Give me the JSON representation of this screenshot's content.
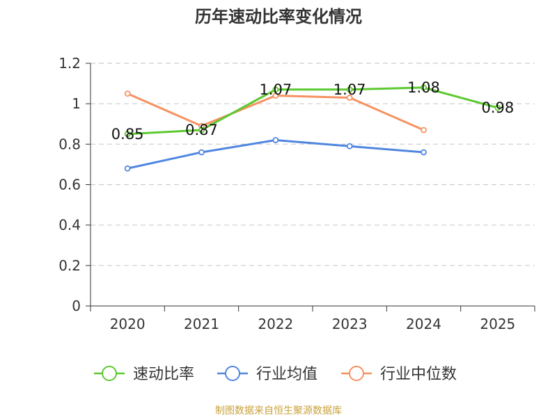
{
  "chart_data": {
    "type": "line",
    "title": "历年速动比率变化情况",
    "categories": [
      "2020",
      "2021",
      "2022",
      "2023",
      "2024",
      "2025"
    ],
    "ylim": [
      0,
      1.2
    ],
    "yticks": [
      "0",
      "0.2",
      "0.4",
      "0.6",
      "0.8",
      "1",
      "1.2"
    ],
    "grid": true,
    "legend_position": "bottom-center",
    "series": [
      {
        "name": "速动比率",
        "color": "#5cc92f",
        "values": [
          0.85,
          0.87,
          1.07,
          1.07,
          1.08,
          0.98
        ],
        "labels": [
          "0.85",
          "0.87",
          "1.07",
          "1.07",
          "1.08",
          "0.98"
        ],
        "show_labels": true
      },
      {
        "name": "行业均值",
        "color": "#4f86e0",
        "values": [
          0.68,
          0.76,
          0.82,
          0.79,
          0.76,
          null
        ],
        "show_labels": false
      },
      {
        "name": "行业中位数",
        "color": "#f59261",
        "values": [
          1.05,
          0.89,
          1.04,
          1.03,
          0.87,
          null
        ],
        "show_labels": false
      }
    ],
    "source": "制图数据来自恒生聚源数据库",
    "source_color": "#c9a23a"
  }
}
